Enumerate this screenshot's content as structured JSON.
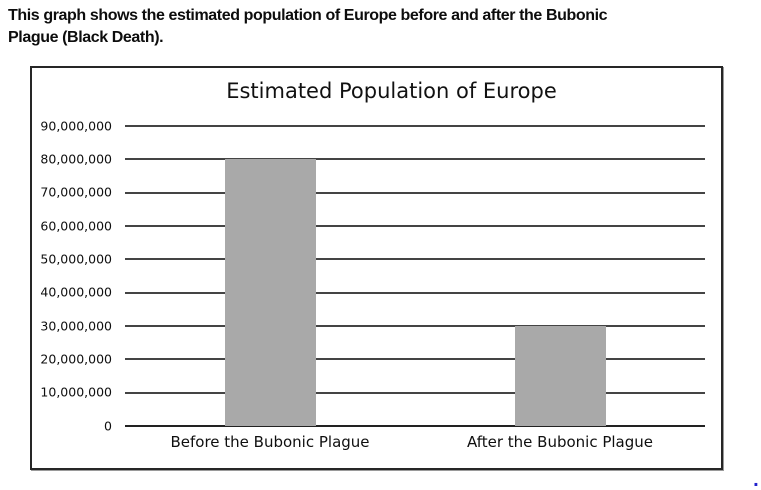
{
  "page": {
    "heading_line1": "This graph shows the estimated population of Europe before and after the Bubonic",
    "heading_line2": "Plague (Black Death).",
    "trailing_mark": "."
  },
  "chart_data": {
    "type": "bar",
    "title": "Estimated Population of Europe",
    "categories": [
      "Before the Bubonic Plague",
      "After the Bubonic Plague"
    ],
    "values": [
      80000000,
      30000000
    ],
    "xlabel": "",
    "ylabel": "",
    "ylim": [
      0,
      90000000
    ],
    "ytick_step": 10000000,
    "yticks": [
      {
        "value": 0,
        "label": "0"
      },
      {
        "value": 10000000,
        "label": "10,000,000"
      },
      {
        "value": 20000000,
        "label": "20,000,000"
      },
      {
        "value": 30000000,
        "label": "30,000,000"
      },
      {
        "value": 40000000,
        "label": "40,000,000"
      },
      {
        "value": 50000000,
        "label": "50,000,000"
      },
      {
        "value": 60000000,
        "label": "60,000,000"
      },
      {
        "value": 70000000,
        "label": "70,000,000"
      },
      {
        "value": 80000000,
        "label": "80,000,000"
      },
      {
        "value": 90000000,
        "label": "90,000,000"
      }
    ],
    "grid": true,
    "legend": false,
    "bar_color": "#a9a9a9",
    "gridline_color": "#444444",
    "axis_line_color": "#222222"
  }
}
